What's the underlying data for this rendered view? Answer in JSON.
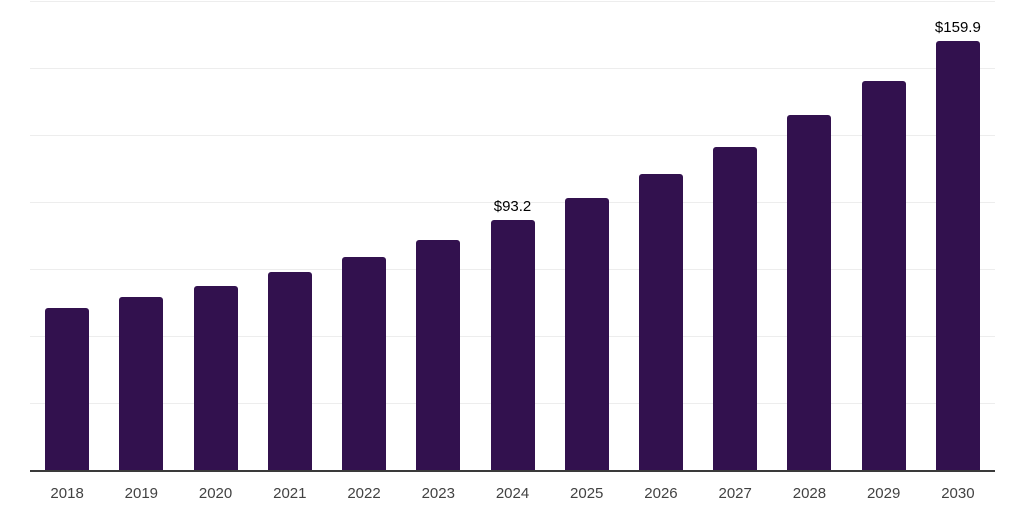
{
  "chart_data": {
    "type": "bar",
    "title": "",
    "xlabel": "",
    "ylabel": "",
    "categories": [
      "2018",
      "2019",
      "2020",
      "2021",
      "2022",
      "2023",
      "2024",
      "2025",
      "2026",
      "2027",
      "2028",
      "2029",
      "2030"
    ],
    "values": [
      60.4,
      64.5,
      68.6,
      73.8,
      79.4,
      85.7,
      93.2,
      101.4,
      110.3,
      120.4,
      132.3,
      145.0,
      159.9
    ],
    "annotations": [
      {
        "category": "2024",
        "text": "$93.2"
      },
      {
        "category": "2030",
        "text": "$159.9"
      }
    ],
    "ylim": [
      0,
      175
    ],
    "grid_step": 25,
    "grid": true,
    "legend": false,
    "y_axis_labels_visible": false,
    "colors": {
      "bar": "#32114e",
      "axis_line": "#3a3a3a",
      "gridline": "#ededed",
      "tick_label": "#424242",
      "data_label": "#000000",
      "background": "#ffffff"
    }
  }
}
